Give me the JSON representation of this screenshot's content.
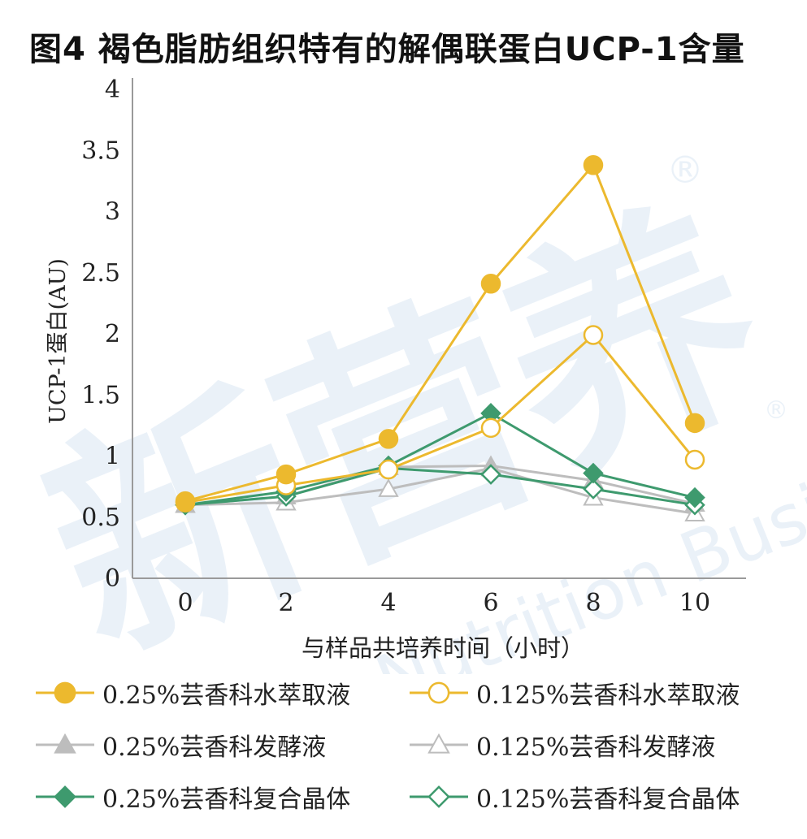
{
  "title": "图4 褐色脂肪组织特有的解偶联蛋白UCP-1含量",
  "chart_data": {
    "type": "line",
    "title": "图4 褐色脂肪组织特有的解偶联蛋白UCP-1含量",
    "xlabel": "与样品共培养时间（小时）",
    "ylabel": "UCP-1蛋白(AU)",
    "x": [
      0,
      2,
      4,
      6,
      8,
      10
    ],
    "x_ticks": [
      "0",
      "2",
      "4",
      "6",
      "8",
      "10"
    ],
    "y_ticks": [
      "0",
      "0.5",
      "1",
      "1.5",
      "2",
      "2.5",
      "3",
      "3.5",
      "4"
    ],
    "ylim": [
      0,
      4
    ],
    "grid": false,
    "legend_position": "bottom",
    "series": [
      {
        "name": "0.25%芸香科水萃取液",
        "values": [
          0.63,
          0.85,
          1.14,
          2.41,
          3.38,
          1.27
        ],
        "color": "#ECB92E",
        "marker": "circle",
        "filled": true
      },
      {
        "name": "0.125%芸香科水萃取液",
        "values": [
          0.62,
          0.76,
          0.89,
          1.23,
          1.99,
          0.97
        ],
        "color": "#ECB92E",
        "marker": "circle",
        "filled": false
      },
      {
        "name": "0.25%芸香科发酵液",
        "values": [
          0.6,
          0.67,
          0.91,
          0.92,
          0.8,
          0.61
        ],
        "color": "#BDBDBD",
        "marker": "triangle",
        "filled": true
      },
      {
        "name": "0.125%芸香科发酵液",
        "values": [
          0.6,
          0.62,
          0.73,
          0.9,
          0.66,
          0.53
        ],
        "color": "#BDBDBD",
        "marker": "triangle",
        "filled": false
      },
      {
        "name": "0.25%芸香科复合晶体",
        "values": [
          0.6,
          0.71,
          0.92,
          1.35,
          0.86,
          0.66
        ],
        "color": "#3E9A6E",
        "marker": "diamond",
        "filled": true
      },
      {
        "name": "0.125%芸香科复合晶体",
        "values": [
          0.6,
          0.67,
          0.9,
          0.85,
          0.73,
          0.6
        ],
        "color": "#3E9A6E",
        "marker": "diamond",
        "filled": false
      }
    ]
  },
  "watermark": {
    "main": "新营养",
    "sub": "New Nutrition Business",
    "mark": "®"
  }
}
